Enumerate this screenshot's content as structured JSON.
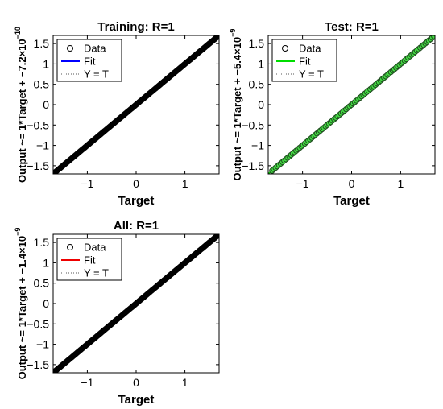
{
  "chart_data": [
    {
      "type": "scatter",
      "title": "Training: R=1",
      "xlabel": "Target",
      "ylabel": "Output ~= 1*Target + −7.2×10",
      "ylabel_exponent": "−10",
      "xlim": [
        -1.7,
        1.7
      ],
      "ylim": [
        -1.7,
        1.7
      ],
      "xticks": [
        -1,
        0,
        1
      ],
      "yticks": [
        -1.5,
        -1,
        -0.5,
        0,
        0.5,
        1,
        1.5
      ],
      "xtick_labels": [
        "−1",
        "0",
        "1"
      ],
      "ytick_labels": [
        "−1.5",
        "−1",
        "−0.5",
        "0",
        "0.5",
        "1",
        "1.5"
      ],
      "fit": {
        "slope": 1,
        "intercept": 0,
        "color": "#0000ff"
      },
      "points": {
        "x_range": [
          -1.7,
          1.7
        ],
        "count": 140,
        "fill": "#000000",
        "edge": "#000000"
      },
      "legend": {
        "placement": "top-left",
        "entries": [
          {
            "label": "Data",
            "kind": "marker"
          },
          {
            "label": "Fit",
            "kind": "line",
            "color": "#0000ff"
          },
          {
            "label": "Y = T",
            "kind": "dotted",
            "color": "#555555"
          }
        ]
      }
    },
    {
      "type": "scatter",
      "title": "Test: R=1",
      "xlabel": "Target",
      "ylabel": "Output ~= 1*Target + −5.4×10",
      "ylabel_exponent": "−9",
      "xlim": [
        -1.7,
        1.7
      ],
      "ylim": [
        -1.7,
        1.7
      ],
      "xticks": [
        -1,
        0,
        1
      ],
      "yticks": [
        -1.5,
        -1,
        -0.5,
        0,
        0.5,
        1,
        1.5
      ],
      "xtick_labels": [
        "−1",
        "0",
        "1"
      ],
      "ytick_labels": [
        "−1.5",
        "−1",
        "−0.5",
        "0",
        "0.5",
        "1",
        "1.5"
      ],
      "fit": {
        "slope": 1,
        "intercept": 0,
        "color": "#00cc00"
      },
      "points": {
        "x_range": [
          -1.62,
          1.68
        ],
        "count": 95,
        "fill": "#44dd44",
        "edge": "#1f4d1f"
      },
      "legend": {
        "placement": "top-left",
        "entries": [
          {
            "label": "Data",
            "kind": "marker"
          },
          {
            "label": "Fit",
            "kind": "line",
            "color": "#00dd00"
          },
          {
            "label": "Y = T",
            "kind": "dotted",
            "color": "#555555"
          }
        ]
      }
    },
    {
      "type": "scatter",
      "title": "All: R=1",
      "xlabel": "Target",
      "ylabel": "Output ~= 1*Target + −1.4×10",
      "ylabel_exponent": "−9",
      "xlim": [
        -1.7,
        1.7
      ],
      "ylim": [
        -1.7,
        1.7
      ],
      "xticks": [
        -1,
        0,
        1
      ],
      "yticks": [
        -1.5,
        -1,
        -0.5,
        0,
        0.5,
        1,
        1.5
      ],
      "xtick_labels": [
        "−1",
        "0",
        "1"
      ],
      "ytick_labels": [
        "−1.5",
        "−1",
        "−0.5",
        "0",
        "0.5",
        "1",
        "1.5"
      ],
      "fit": {
        "slope": 1,
        "intercept": 0,
        "color": "#ee0000"
      },
      "points": {
        "x_range": [
          -1.7,
          1.7
        ],
        "count": 140,
        "fill": "#000000",
        "edge": "#000000"
      },
      "legend": {
        "placement": "top-left",
        "entries": [
          {
            "label": "Data",
            "kind": "marker"
          },
          {
            "label": "Fit",
            "kind": "line",
            "color": "#ee0000"
          },
          {
            "label": "Y = T",
            "kind": "dotted",
            "color": "#555555"
          }
        ]
      }
    }
  ]
}
